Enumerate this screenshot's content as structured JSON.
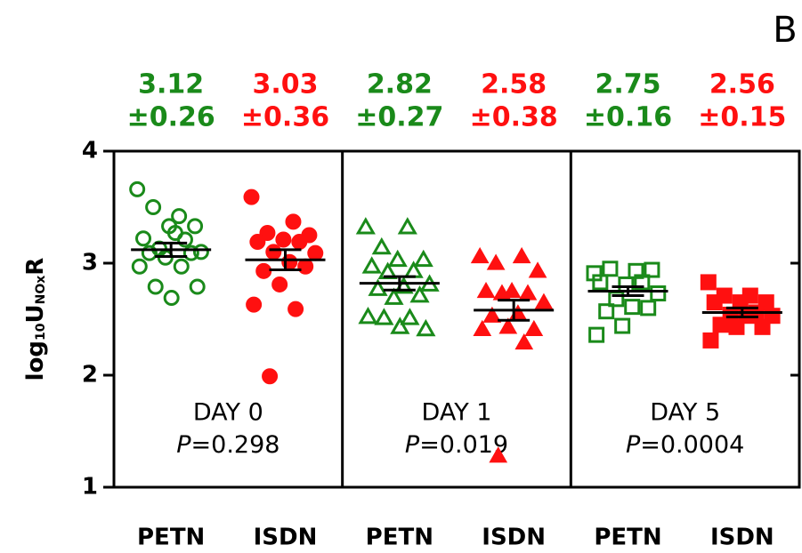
{
  "chart_data": {
    "type": "dot",
    "panel_letter": "B",
    "ylabel": [
      "log",
      "10",
      "U",
      "NOx",
      "R"
    ],
    "ylim": [
      1,
      4
    ],
    "yticks": [
      1,
      2,
      3,
      4
    ],
    "p_symbol": "P",
    "panels": [
      {
        "label": "DAY 0",
        "p_value": "=0.298"
      },
      {
        "label": "DAY 1",
        "p_value": "=0.019"
      },
      {
        "label": "DAY 5",
        "p_value": "=0.0004"
      }
    ],
    "series": [
      {
        "name": "PETN",
        "color": "#1a8a1a",
        "marker": "circle",
        "filled": false,
        "mean": 3.12,
        "sem": 0.06,
        "sd": 0.26,
        "sd_label": "±0.26",
        "values": [
          3.66,
          3.42,
          3.5,
          3.33,
          3.33,
          3.22,
          3.21,
          3.13,
          3.1,
          3.27,
          3.09,
          3.09,
          3.05,
          2.97,
          2.97,
          2.79,
          2.79,
          2.69
        ]
      },
      {
        "name": "ISDN",
        "color": "#ff1010",
        "marker": "circle",
        "filled": true,
        "mean": 3.03,
        "sem": 0.09,
        "sd": 0.36,
        "sd_label": "±0.36",
        "values": [
          3.59,
          3.37,
          3.27,
          3.25,
          3.21,
          3.19,
          3.19,
          3.1,
          3.09,
          3.01,
          2.93,
          2.97,
          2.81,
          2.63,
          2.59,
          1.99
        ]
      },
      {
        "name": "PETN",
        "color": "#1a8a1a",
        "marker": "triangle",
        "filled": false,
        "mean": 2.82,
        "sem": 0.06,
        "sd": 0.27,
        "sd_label": "±0.27",
        "values": [
          3.32,
          3.32,
          3.14,
          3.03,
          3.03,
          2.97,
          2.93,
          2.92,
          2.81,
          2.79,
          2.77,
          2.71,
          2.69,
          2.52,
          2.51,
          2.51,
          2.41,
          2.43
        ]
      },
      {
        "name": "ISDN",
        "color": "#ff1010",
        "marker": "triangle",
        "filled": true,
        "mean": 2.58,
        "sem": 0.09,
        "sd": 0.38,
        "sd_label": "±0.38",
        "values": [
          3.06,
          3.06,
          3.0,
          2.93,
          2.75,
          2.75,
          2.73,
          2.73,
          2.65,
          2.55,
          2.53,
          2.41,
          2.43,
          2.41,
          2.29,
          1.28
        ]
      },
      {
        "name": "PETN",
        "color": "#1a8a1a",
        "marker": "square",
        "filled": false,
        "mean": 2.75,
        "sem": 0.04,
        "sd": 0.16,
        "sd_label": "±0.16",
        "values": [
          2.91,
          2.93,
          2.95,
          2.94,
          2.81,
          2.83,
          2.83,
          2.68,
          2.73,
          2.61,
          2.57,
          2.6,
          2.44,
          2.36
        ]
      },
      {
        "name": "ISDN",
        "color": "#ff1010",
        "marker": "square",
        "filled": true,
        "mean": 2.56,
        "sem": 0.04,
        "sd": 0.15,
        "sd_label": "±0.15",
        "values": [
          2.83,
          2.71,
          2.71,
          2.65,
          2.65,
          2.65,
          2.56,
          2.54,
          2.53,
          2.53,
          2.45,
          2.43,
          2.43,
          2.31
        ]
      }
    ]
  }
}
